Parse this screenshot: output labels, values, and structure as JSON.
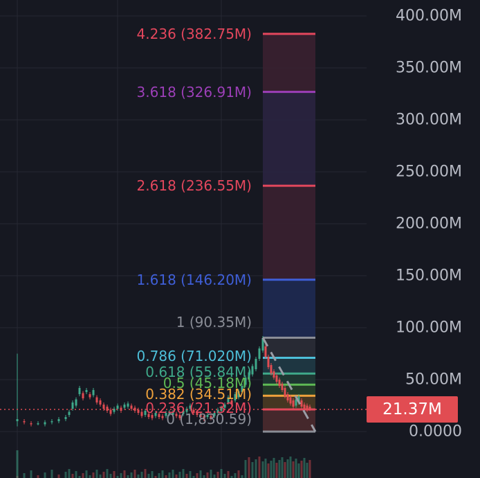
{
  "price_axis": {
    "ticks": [
      {
        "label": "400.00M",
        "value": 400
      },
      {
        "label": "350.00M",
        "value": 350
      },
      {
        "label": "300.00M",
        "value": 300
      },
      {
        "label": "250.00M",
        "value": 250
      },
      {
        "label": "200.00M",
        "value": 200
      },
      {
        "label": "150.00M",
        "value": 150
      },
      {
        "label": "100.00M",
        "value": 100
      },
      {
        "label": "50.00M",
        "value": 50
      },
      {
        "label": "0.0000",
        "value": 0
      }
    ]
  },
  "current_price": {
    "label": "21.37M",
    "value": 21.37,
    "color": "#e14c52"
  },
  "fib_levels": [
    {
      "label": "4.236 (382.75M)",
      "value": 382.75,
      "color": "#e4475d",
      "fill": "#3a2030"
    },
    {
      "label": "3.618 (326.91M)",
      "value": 326.91,
      "color": "#9c3fb8",
      "fill": "#2a2340"
    },
    {
      "label": "2.618 (236.55M)",
      "value": 236.55,
      "color": "#e4475d",
      "fill": "#3a2030"
    },
    {
      "label": "1.618 (146.20M)",
      "value": 146.2,
      "color": "#3f5fd8",
      "fill": "#1e2a52"
    },
    {
      "label": "1 (90.35M)",
      "value": 90.35,
      "color": "#8a8d96",
      "fill": "#2a2c36"
    },
    {
      "label": "0.786 (71.020M)",
      "value": 71.02,
      "color": "#4dbfd9",
      "fill": "#1f3a45"
    },
    {
      "label": "0.618 (55.84M)",
      "value": 55.84,
      "color": "#3fa98a",
      "fill": "#1f3a34"
    },
    {
      "label": "0.5 (45.18M)",
      "value": 45.18,
      "color": "#5fba55",
      "fill": "#26402a"
    },
    {
      "label": "0.382 (34.51M)",
      "value": 34.51,
      "color": "#f0a23c",
      "fill": "#4a3a22"
    },
    {
      "label": "0.236 (21.32M)",
      "value": 21.32,
      "color": "#e4475d",
      "fill": "#4a2a2e"
    },
    {
      "label": "0 (1,830.59)",
      "value": 0.0018,
      "color": "#8a8d96",
      "fill": "#2a2c36"
    }
  ],
  "colors": {
    "background": "#161821",
    "grid": "#262833",
    "candle_up": "#3fa98a",
    "candle_down": "#e14c52"
  }
}
